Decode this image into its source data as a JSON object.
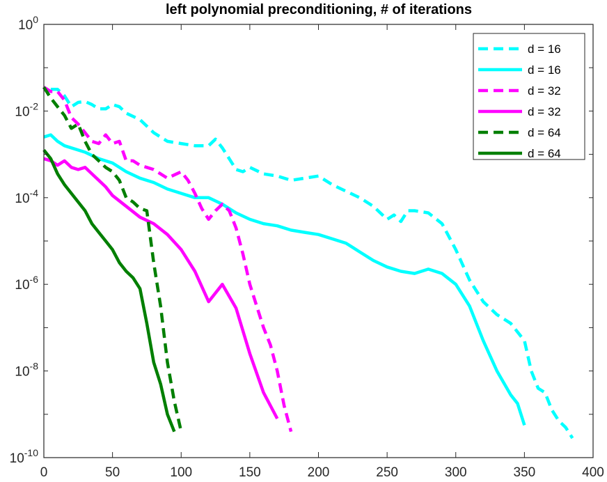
{
  "chart_data": {
    "type": "line",
    "title": "left polynomial preconditioning, # of iterations",
    "xlabel": "",
    "ylabel": "",
    "xlim": [
      0,
      400
    ],
    "ylim_log10": [
      -10,
      0
    ],
    "yscale": "log",
    "x_ticks": [
      0,
      50,
      100,
      150,
      200,
      250,
      300,
      350,
      400
    ],
    "y_ticks": [
      {
        "base": "10",
        "exp": "0",
        "value": 0
      },
      {
        "base": "10",
        "exp": "-2",
        "value": -2
      },
      {
        "base": "10",
        "exp": "-4",
        "value": -4
      },
      {
        "base": "10",
        "exp": "-6",
        "value": -6
      },
      {
        "base": "10",
        "exp": "-8",
        "value": -8
      },
      {
        "base": "10",
        "exp": "-10",
        "value": -10
      }
    ],
    "legend_position": "top-right",
    "series": [
      {
        "name": "d = 16",
        "color": "#00FFFF",
        "dash": "dashed",
        "x": [
          5,
          10,
          15,
          20,
          25,
          30,
          35,
          40,
          45,
          50,
          55,
          60,
          70,
          80,
          90,
          100,
          110,
          115,
          120,
          125,
          130,
          135,
          140,
          145,
          150,
          160,
          170,
          180,
          190,
          200,
          210,
          220,
          230,
          240,
          250,
          255,
          260,
          265,
          270,
          280,
          290,
          300,
          310,
          320,
          330,
          340,
          350,
          355,
          360,
          365,
          370,
          375,
          380,
          385
        ],
        "log10y": [
          -1.5,
          -1.5,
          -1.65,
          -1.9,
          -1.8,
          -1.78,
          -1.85,
          -1.95,
          -1.95,
          -1.85,
          -1.9,
          -2.05,
          -2.2,
          -2.5,
          -2.7,
          -2.75,
          -2.8,
          -2.8,
          -2.8,
          -2.65,
          -2.85,
          -3.1,
          -3.35,
          -3.4,
          -3.3,
          -3.45,
          -3.5,
          -3.6,
          -3.55,
          -3.5,
          -3.7,
          -3.85,
          -4.0,
          -4.2,
          -4.5,
          -4.4,
          -4.55,
          -4.3,
          -4.3,
          -4.35,
          -4.6,
          -5.2,
          -5.9,
          -6.4,
          -6.7,
          -6.9,
          -7.3,
          -8.0,
          -8.4,
          -8.5,
          -8.9,
          -9.15,
          -9.3,
          -9.55
        ]
      },
      {
        "name": "d = 16",
        "color": "#00FFFF",
        "dash": "solid",
        "x": [
          0,
          5,
          10,
          15,
          20,
          30,
          40,
          50,
          60,
          70,
          80,
          90,
          100,
          110,
          120,
          130,
          140,
          150,
          160,
          170,
          180,
          190,
          200,
          210,
          220,
          230,
          240,
          250,
          260,
          270,
          280,
          290,
          300,
          310,
          320,
          330,
          340,
          345,
          350
        ],
        "log10y": [
          -2.6,
          -2.55,
          -2.7,
          -2.8,
          -2.85,
          -2.95,
          -3.1,
          -3.2,
          -3.4,
          -3.55,
          -3.65,
          -3.8,
          -3.9,
          -4.0,
          -4.0,
          -4.15,
          -4.35,
          -4.5,
          -4.6,
          -4.65,
          -4.75,
          -4.8,
          -4.85,
          -4.95,
          -5.05,
          -5.25,
          -5.45,
          -5.6,
          -5.7,
          -5.75,
          -5.65,
          -5.75,
          -6.0,
          -6.5,
          -7.3,
          -8.0,
          -8.55,
          -8.75,
          -9.25
        ]
      },
      {
        "name": "d = 32",
        "color": "#FF00FF",
        "dash": "dashed",
        "x": [
          0,
          5,
          10,
          15,
          20,
          25,
          30,
          35,
          40,
          45,
          50,
          55,
          60,
          65,
          70,
          75,
          80,
          90,
          100,
          105,
          110,
          115,
          120,
          125,
          130,
          135,
          140,
          145,
          150,
          155,
          160,
          165,
          170,
          175,
          180
        ],
        "log10y": [
          -1.45,
          -1.55,
          -1.55,
          -1.75,
          -2.15,
          -2.3,
          -2.5,
          -2.7,
          -2.75,
          -2.55,
          -2.75,
          -2.7,
          -3.15,
          -3.15,
          -3.25,
          -3.3,
          -3.35,
          -3.55,
          -3.4,
          -3.6,
          -3.9,
          -4.25,
          -4.5,
          -4.3,
          -4.15,
          -4.3,
          -4.7,
          -5.3,
          -6.0,
          -6.5,
          -7.0,
          -7.4,
          -8.0,
          -8.8,
          -9.4
        ]
      },
      {
        "name": "d = 32",
        "color": "#FF00FF",
        "dash": "solid",
        "x": [
          0,
          5,
          10,
          15,
          20,
          25,
          30,
          40,
          45,
          50,
          60,
          70,
          80,
          90,
          100,
          110,
          120,
          130,
          140,
          150,
          160,
          170
        ],
        "log10y": [
          -3.1,
          -3.15,
          -3.25,
          -3.15,
          -3.3,
          -3.35,
          -3.3,
          -3.6,
          -3.75,
          -3.95,
          -4.2,
          -4.45,
          -4.6,
          -4.85,
          -5.2,
          -5.7,
          -6.4,
          -6.0,
          -6.55,
          -7.6,
          -8.5,
          -9.1
        ]
      },
      {
        "name": "d = 64",
        "color": "#007F00",
        "dash": "dashed",
        "x": [
          0,
          5,
          10,
          15,
          20,
          25,
          30,
          35,
          40,
          45,
          50,
          55,
          60,
          65,
          70,
          75,
          80,
          85,
          90,
          95,
          100
        ],
        "log10y": [
          -1.45,
          -1.7,
          -1.9,
          -2.1,
          -2.4,
          -2.3,
          -2.7,
          -3.0,
          -3.15,
          -3.3,
          -3.4,
          -3.6,
          -4.0,
          -4.1,
          -4.25,
          -4.3,
          -5.5,
          -6.5,
          -7.8,
          -8.7,
          -9.4
        ]
      },
      {
        "name": "d = 64",
        "color": "#007F00",
        "dash": "solid",
        "x": [
          0,
          5,
          10,
          15,
          20,
          25,
          30,
          35,
          40,
          45,
          50,
          55,
          60,
          65,
          70,
          75,
          80,
          85,
          90,
          95
        ],
        "log10y": [
          -2.9,
          -3.1,
          -3.45,
          -3.7,
          -3.9,
          -4.1,
          -4.3,
          -4.6,
          -4.8,
          -5.0,
          -5.2,
          -5.5,
          -5.7,
          -5.85,
          -6.1,
          -6.9,
          -7.8,
          -8.3,
          -9.0,
          -9.4
        ]
      }
    ]
  }
}
